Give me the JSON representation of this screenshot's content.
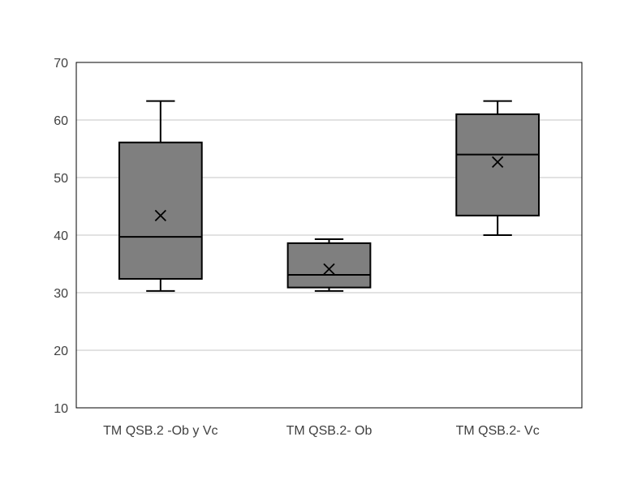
{
  "chart_data": {
    "type": "box",
    "title": "",
    "xlabel": "",
    "ylabel": "",
    "ylim": [
      10,
      70
    ],
    "yticks": [
      10,
      20,
      30,
      40,
      50,
      60,
      70
    ],
    "grid": true,
    "legend": "none",
    "categories": [
      "TM QSB.2 -Ob y Vc",
      "TM QSB.2- Ob",
      "TM QSB.2- Vc"
    ],
    "boxes": [
      {
        "category": "TM QSB.2 -Ob y Vc",
        "min": 30.3,
        "q1": 32.4,
        "median": 39.7,
        "q3": 56.1,
        "max": 63.3,
        "mean": 43.4
      },
      {
        "category": "TM QSB.2- Ob",
        "min": 30.3,
        "q1": 30.9,
        "median": 33.1,
        "q3": 38.6,
        "max": 39.3,
        "mean": 34.1
      },
      {
        "category": "TM QSB.2- Vc",
        "min": 40.0,
        "q1": 43.4,
        "median": 54.0,
        "q3": 61.0,
        "max": 63.3,
        "mean": 52.7
      }
    ],
    "colors": {
      "box_fill": "#7f7f7f",
      "box_stroke": "#000000",
      "grid": "#d9d9d9",
      "axis": "#000000",
      "text": "#404040"
    }
  }
}
